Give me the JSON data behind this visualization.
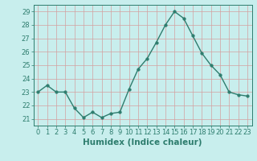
{
  "x": [
    0,
    1,
    2,
    3,
    4,
    5,
    6,
    7,
    8,
    9,
    10,
    11,
    12,
    13,
    14,
    15,
    16,
    17,
    18,
    19,
    20,
    21,
    22,
    23
  ],
  "y": [
    23.0,
    23.5,
    23.0,
    23.0,
    21.8,
    21.1,
    21.5,
    21.1,
    21.4,
    21.5,
    23.2,
    24.7,
    25.5,
    26.7,
    28.0,
    29.0,
    28.5,
    27.2,
    25.9,
    25.0,
    24.3,
    23.0,
    22.8,
    22.7
  ],
  "line_color": "#2e7d6e",
  "marker": "o",
  "marker_size": 2.5,
  "bg_color": "#c8eeed",
  "grid_color": "#d4a0a0",
  "xlabel": "Humidex (Indice chaleur)",
  "xlim": [
    -0.5,
    23.5
  ],
  "ylim": [
    20.5,
    29.5
  ],
  "yticks": [
    21,
    22,
    23,
    24,
    25,
    26,
    27,
    28,
    29
  ],
  "xticks": [
    0,
    1,
    2,
    3,
    4,
    5,
    6,
    7,
    8,
    9,
    10,
    11,
    12,
    13,
    14,
    15,
    16,
    17,
    18,
    19,
    20,
    21,
    22,
    23
  ],
  "tick_color": "#2e7d6e",
  "label_fontsize": 7.5,
  "tick_fontsize": 6.0,
  "linewidth": 1.0
}
